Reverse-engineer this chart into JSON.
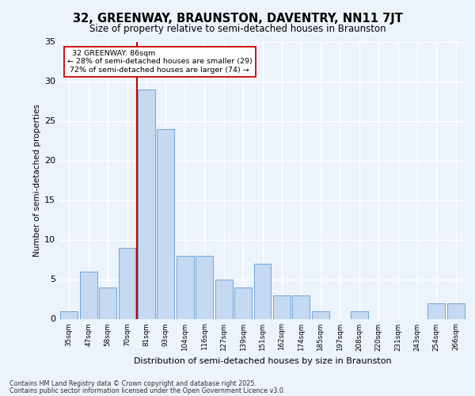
{
  "title1": "32, GREENWAY, BRAUNSTON, DAVENTRY, NN11 7JT",
  "title2": "Size of property relative to semi-detached houses in Braunston",
  "xlabel": "Distribution of semi-detached houses by size in Braunston",
  "ylabel": "Number of semi-detached properties",
  "categories": [
    "35sqm",
    "47sqm",
    "58sqm",
    "70sqm",
    "81sqm",
    "93sqm",
    "104sqm",
    "116sqm",
    "127sqm",
    "139sqm",
    "151sqm",
    "162sqm",
    "174sqm",
    "185sqm",
    "197sqm",
    "208sqm",
    "220sqm",
    "231sqm",
    "243sqm",
    "254sqm",
    "266sqm"
  ],
  "values": [
    1,
    6,
    4,
    9,
    29,
    24,
    8,
    8,
    5,
    4,
    7,
    3,
    3,
    1,
    0,
    1,
    0,
    0,
    0,
    2,
    2
  ],
  "bar_color": "#c5d9f1",
  "bar_edge_color": "#5b9bd5",
  "red_line_index": 4,
  "red_line_label": "32 GREENWAY: 86sqm",
  "smaller_pct": 28,
  "smaller_count": 29,
  "larger_pct": 72,
  "larger_count": 74,
  "ylim_max": 35,
  "yticks": [
    0,
    5,
    10,
    15,
    20,
    25,
    30,
    35
  ],
  "bg_color": "#edf3fb",
  "ann_box_color": "#ffffff",
  "ann_border_color": "#cc0000",
  "red_line_color": "#cc0000",
  "footer1": "Contains HM Land Registry data © Crown copyright and database right 2025.",
  "footer2": "Contains public sector information licensed under the Open Government Licence v3.0."
}
